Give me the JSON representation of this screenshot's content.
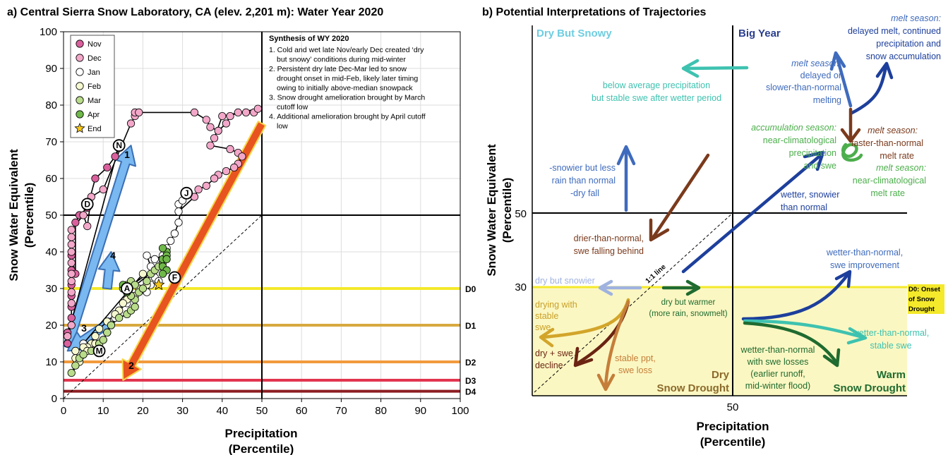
{
  "panel_a": {
    "title": "a) Central Sierra Snow Laboratory, CA (elev. 2,201 m): Water Year 2020",
    "synthesis_title": "Synthesis of WY 2020",
    "synthesis_lines": [
      "1. Cold and wet late Nov/early Dec created ‘dry",
      "but snowy’ conditions during mid-winter",
      "2. Persistent dry late Dec-Mar led to snow",
      "drought onset in mid-Feb, likely later timing",
      "owing to initially above-median snowpack",
      "3. Snow drought amelioration brought by March",
      "cutoff low",
      "4. Additional amelioration brought by April cutoff",
      "low"
    ],
    "legend": [
      "Nov",
      "Dec",
      "Jan",
      "Feb",
      "Mar",
      "Apr",
      "End"
    ],
    "arrow_labels": [
      "1",
      "2",
      "3",
      "4"
    ],
    "month_markers": [
      "N",
      "D",
      "J",
      "F",
      "M",
      "A"
    ]
  },
  "panel_b": {
    "title": "b) Potential Interpretations of Trajectories",
    "xlabel": [
      "Precipitation",
      "(Percentile)"
    ],
    "ylabel": [
      "Snow Water Equivalent",
      "(Percentile)"
    ],
    "x_ticks": [
      "50"
    ],
    "y_ticks": [
      "50",
      "30"
    ],
    "quadrants": {
      "dry_but_snowy": "Dry But Snowy",
      "big_year": "Big Year",
      "dry_drought": [
        "Dry",
        "Snow Drought"
      ],
      "warm_drought": [
        "Warm",
        "Snow Drought"
      ]
    },
    "d0_label": [
      "D0: Onset",
      "of Snow",
      "Drought"
    ],
    "one_to_one": "1:1 line",
    "annotations": {
      "melt_delayed_title": "melt season:",
      "melt_delayed_body": [
        "delayed melt, continued",
        "precipitation and",
        "snow accumulation"
      ],
      "below_avg": [
        "below average precipitation",
        "but stable swe after wetter period"
      ],
      "melt_slower_title": "melt season:",
      "melt_slower_body": [
        "delayed or",
        "slower-than-normal",
        "melting"
      ],
      "accum_title": "accumulation season:",
      "accum_body": [
        "near-climatological",
        "precipitation",
        "and swe"
      ],
      "melt_faster_title": "melt season:",
      "melt_faster_body": [
        "faster-than-normal",
        "melt rate"
      ],
      "melt_near_title": "melt season:",
      "melt_near_body": [
        "near-climatological",
        "melt rate"
      ],
      "snowier": [
        "-snowier but less",
        "rain than normal",
        "-dry fall"
      ],
      "wetter_snowier": [
        "wetter, snowier",
        "than normal"
      ],
      "drier": [
        "drier-than-normal,",
        "swe falling behind"
      ],
      "wetter_improve": [
        "wetter-than-normal,",
        "swe improvement"
      ],
      "dry_snowier": "dry but snowier",
      "dry_warmer": [
        "dry but warmer",
        "(more rain, snowmelt)"
      ],
      "drying_stable": [
        "drying with",
        "stable",
        "swe"
      ],
      "dry_swe_decline": [
        "dry + swe",
        "decline"
      ],
      "stable_ppt": [
        "stable ppt,",
        "swe loss"
      ],
      "wetter_stable": [
        "wetter-than-normal,",
        "stable swe"
      ],
      "wetter_losses": [
        "wetter-than-normal",
        "with swe losses",
        "(earlier runoff,",
        "mid-winter flood)"
      ]
    }
  },
  "colors": {
    "nov": "#d9609c",
    "dec": "#f3a7c9",
    "jan": "#ffffff",
    "feb": "#f6f8cf",
    "mar": "#b8dc8a",
    "apr": "#6fb84a",
    "end": "#f5c518",
    "d0": "#f4e92a",
    "d1": "#d7a93f",
    "d2": "#f29a3c",
    "d3": "#e2354f",
    "d4": "#8d1d22",
    "arrow_blue": "#79b8f0",
    "arrow_orange": "#e8541f",
    "drought_fill": "#fbf7c2"
  },
  "chart_data": [
    {
      "type": "line",
      "title": "a) Central Sierra Snow Laboratory, CA (elev. 2,201 m): Water Year 2020",
      "xlabel": "Precipitation (Percentile)",
      "ylabel": "Snow Water Equivalent (Percentile)",
      "xlim": [
        0,
        100
      ],
      "ylim": [
        0,
        100
      ],
      "x_ticks": [
        "0",
        "10",
        "20",
        "30",
        "40",
        "50",
        "60",
        "70",
        "80",
        "90",
        "100"
      ],
      "y_ticks": [
        "0",
        "10",
        "20",
        "30",
        "40",
        "50",
        "60",
        "70",
        "80",
        "90",
        "100"
      ],
      "legend_position": "top-left",
      "drought_levels": [
        {
          "name": "D0",
          "y": 30
        },
        {
          "name": "D1",
          "y": 20
        },
        {
          "name": "D2",
          "y": 10
        },
        {
          "name": "D3",
          "y": 5
        },
        {
          "name": "D4",
          "y": 2
        }
      ],
      "reference_lines": {
        "x": 50,
        "y": 50,
        "one_to_one": [
          [
            0,
            0
          ],
          [
            50,
            50
          ]
        ]
      },
      "series": [
        {
          "name": "Nov",
          "points": [
            [
              1,
              15
            ],
            [
              1,
              18
            ],
            [
              2,
              22
            ],
            [
              2,
              25
            ],
            [
              2,
              28
            ],
            [
              2,
              31
            ],
            [
              2,
              35
            ],
            [
              2,
              39
            ],
            [
              3,
              34
            ],
            [
              3,
              48
            ],
            [
              4,
              50
            ],
            [
              6,
              52
            ],
            [
              8,
              60
            ],
            [
              11,
              63
            ],
            [
              13,
              66
            ],
            [
              14,
              69
            ]
          ]
        },
        {
          "name": "Dec",
          "points": [
            [
              1,
              17
            ],
            [
              2,
              20
            ],
            [
              2,
              26
            ],
            [
              2,
              29
            ],
            [
              2,
              32
            ],
            [
              2,
              34
            ],
            [
              2,
              37
            ],
            [
              2,
              40
            ],
            [
              2,
              42
            ],
            [
              2,
              44
            ],
            [
              2,
              46
            ],
            [
              5,
              50
            ],
            [
              6,
              47
            ],
            [
              7,
              55
            ],
            [
              10,
              57
            ],
            [
              17,
              75
            ],
            [
              18,
              77
            ],
            [
              18,
              78
            ],
            [
              19,
              78
            ],
            [
              33,
              78
            ],
            [
              36,
              76
            ],
            [
              37,
              74
            ],
            [
              39,
              73
            ],
            [
              41,
              75
            ],
            [
              42,
              77
            ],
            [
              44,
              78
            ],
            [
              46,
              78
            ],
            [
              48,
              78
            ],
            [
              49,
              79
            ],
            [
              40,
              77
            ],
            [
              38,
              71
            ],
            [
              37,
              69
            ],
            [
              42,
              68
            ],
            [
              44,
              67
            ],
            [
              45,
              66
            ],
            [
              44,
              64
            ],
            [
              43,
              63
            ],
            [
              41,
              62
            ],
            [
              39,
              61
            ],
            [
              38,
              60
            ],
            [
              36,
              58
            ],
            [
              34,
              57
            ],
            [
              33,
              55
            ]
          ]
        },
        {
          "name": "Jan",
          "points": [
            [
              29,
              51
            ],
            [
              29,
              53
            ],
            [
              30,
              54
            ],
            [
              29,
              48
            ],
            [
              28,
              45
            ],
            [
              27,
              43
            ],
            [
              26,
              41
            ],
            [
              25,
              39
            ],
            [
              23,
              38
            ],
            [
              21,
              39
            ],
            [
              22,
              36
            ],
            [
              23,
              33
            ],
            [
              24,
              32
            ],
            [
              22,
              31
            ],
            [
              21,
              29
            ],
            [
              17,
              28
            ],
            [
              16,
              26
            ],
            [
              14,
              24
            ],
            [
              13,
              22
            ],
            [
              12,
              20
            ],
            [
              11,
              18
            ],
            [
              10,
              16
            ],
            [
              8,
              15
            ],
            [
              6,
              14
            ],
            [
              5,
              15
            ]
          ]
        },
        {
          "name": "Feb",
          "points": [
            [
              20,
              34
            ],
            [
              21,
              31
            ],
            [
              19,
              30
            ],
            [
              18,
              28
            ],
            [
              16,
              27
            ],
            [
              15,
              26
            ],
            [
              14,
              24
            ],
            [
              13,
              23
            ],
            [
              11,
              21
            ],
            [
              9,
              19
            ],
            [
              8,
              17
            ],
            [
              7,
              15
            ],
            [
              6,
              14
            ],
            [
              5,
              14
            ],
            [
              3,
              13
            ],
            [
              3,
              11
            ],
            [
              4,
              10
            ],
            [
              5,
              12
            ],
            [
              6,
              13
            ],
            [
              8,
              15
            ]
          ]
        },
        {
          "name": "Mar",
          "points": [
            [
              2,
              7
            ],
            [
              3,
              9
            ],
            [
              4,
              11
            ],
            [
              5,
              12
            ],
            [
              7,
              13
            ],
            [
              9,
              15
            ],
            [
              10,
              16
            ],
            [
              11,
              18
            ],
            [
              12,
              20
            ],
            [
              14,
              22
            ],
            [
              16,
              23
            ],
            [
              17,
              24
            ],
            [
              18,
              25
            ],
            [
              18,
              27
            ],
            [
              17,
              28
            ],
            [
              16,
              29
            ],
            [
              15,
              30
            ],
            [
              16,
              31
            ],
            [
              17,
              32
            ],
            [
              18,
              31
            ],
            [
              19,
              29
            ],
            [
              20,
              30
            ],
            [
              21,
              32
            ],
            [
              22,
              34
            ],
            [
              23,
              35
            ],
            [
              24,
              36
            ]
          ]
        },
        {
          "name": "Apr",
          "points": [
            [
              16,
              29
            ],
            [
              15,
              31
            ],
            [
              16,
              30
            ],
            [
              25,
              37
            ],
            [
              25,
              38
            ],
            [
              26,
              40
            ],
            [
              25,
              41
            ],
            [
              26,
              39
            ],
            [
              26,
              38
            ],
            [
              25,
              36
            ],
            [
              26,
              35
            ],
            [
              25,
              34
            ]
          ]
        },
        {
          "name": "End",
          "points": [
            [
              24,
              31
            ]
          ]
        }
      ],
      "month_markers": [
        {
          "label": "N",
          "x": 14,
          "y": 69
        },
        {
          "label": "D",
          "x": 6,
          "y": 53
        },
        {
          "label": "J",
          "x": 31,
          "y": 56
        },
        {
          "label": "F",
          "x": 28,
          "y": 33
        },
        {
          "label": "M",
          "x": 9,
          "y": 13
        },
        {
          "label": "A",
          "x": 16,
          "y": 30
        }
      ],
      "annotation_arrows": [
        {
          "label": "1",
          "from": [
            1,
            14
          ],
          "to": [
            17,
            69
          ]
        },
        {
          "label": "2",
          "from": [
            50,
            75
          ],
          "to": [
            15,
            5
          ]
        },
        {
          "label": "3",
          "from": [
            12,
            21
          ],
          "to": [
            1,
            13
          ]
        },
        {
          "label": "4",
          "from": [
            11,
            30
          ],
          "to": [
            12,
            40
          ]
        }
      ]
    },
    {
      "type": "other",
      "title": "b) Potential Interpretations of Trajectories",
      "xlabel": "Precipitation (Percentile)",
      "ylabel": "Snow Water Equivalent (Percentile)",
      "x_ticks": [
        "50"
      ],
      "y_ticks": [
        "30",
        "50"
      ]
    }
  ]
}
